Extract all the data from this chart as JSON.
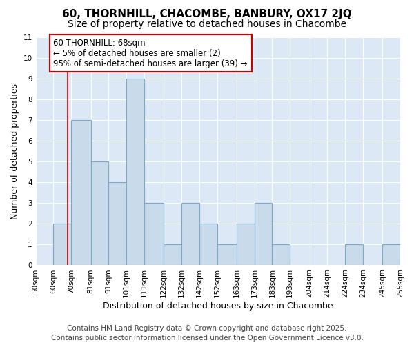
{
  "title": "60, THORNHILL, CHACOMBE, BANBURY, OX17 2JQ",
  "subtitle": "Size of property relative to detached houses in Chacombe",
  "xlabel": "Distribution of detached houses by size in Chacombe",
  "ylabel": "Number of detached properties",
  "bin_edges": [
    50,
    60,
    70,
    81,
    91,
    101,
    111,
    122,
    132,
    142,
    152,
    163,
    173,
    183,
    193,
    204,
    214,
    224,
    234,
    245,
    255
  ],
  "bar_heights": [
    0,
    2,
    7,
    5,
    4,
    9,
    3,
    1,
    3,
    2,
    1,
    2,
    3,
    1,
    0,
    0,
    0,
    1,
    0,
    1
  ],
  "bar_color": "#c9daea",
  "bar_edge_color": "#7aaac8",
  "bar_edge_width": 0.8,
  "red_line_x": 68,
  "red_line_color": "#cc0000",
  "annotation_text": "60 THORNHILL: 68sqm\n← 5% of detached houses are smaller (2)\n95% of semi-detached houses are larger (39) →",
  "annotation_box_facecolor": "#ffffff",
  "annotation_box_edgecolor": "#cc0000",
  "ylim": [
    0,
    11
  ],
  "yticks": [
    0,
    1,
    2,
    3,
    4,
    5,
    6,
    7,
    8,
    9,
    10,
    11
  ],
  "tick_labels": [
    "50sqm",
    "60sqm",
    "70sqm",
    "81sqm",
    "91sqm",
    "101sqm",
    "111sqm",
    "122sqm",
    "132sqm",
    "142sqm",
    "152sqm",
    "163sqm",
    "173sqm",
    "183sqm",
    "193sqm",
    "204sqm",
    "214sqm",
    "224sqm",
    "234sqm",
    "245sqm",
    "255sqm"
  ],
  "plot_bg_color": "#dce8f5",
  "fig_bg_color": "#ffffff",
  "grid_color": "#ffffff",
  "footer_line1": "Contains HM Land Registry data © Crown copyright and database right 2025.",
  "footer_line2": "Contains public sector information licensed under the Open Government Licence v3.0.",
  "title_fontsize": 11,
  "subtitle_fontsize": 10,
  "axis_label_fontsize": 9,
  "tick_fontsize": 7.5,
  "annotation_fontsize": 8.5,
  "footer_fontsize": 7.5
}
